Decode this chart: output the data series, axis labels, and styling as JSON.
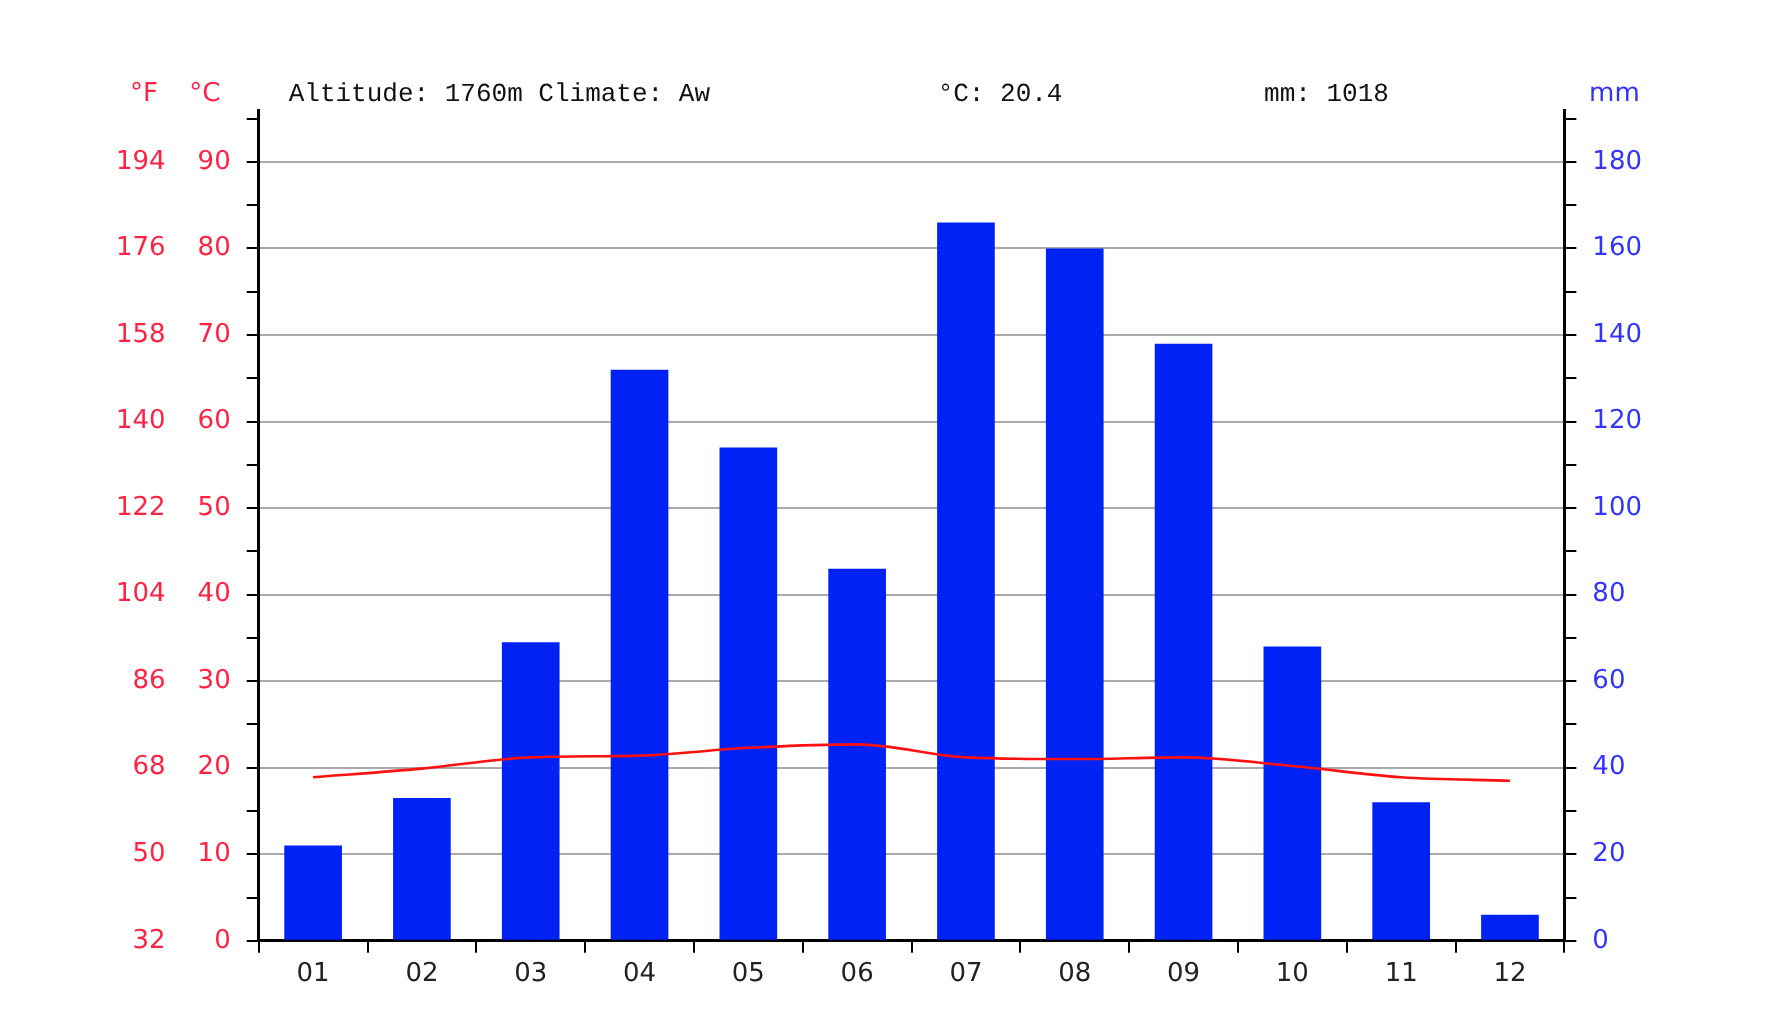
{
  "chart_data": {
    "type": "bar",
    "title": "Altitude: 1760m Climate: Aw",
    "annotations": [
      "°C: 20.4",
      "mm: 1018"
    ],
    "categories": [
      "01",
      "02",
      "03",
      "04",
      "05",
      "06",
      "07",
      "08",
      "09",
      "10",
      "11",
      "12"
    ],
    "series": [
      {
        "axis": "y2",
        "color": "#0022f5",
        "values": [
          22,
          33,
          69,
          132,
          114,
          86,
          166,
          160,
          138,
          68,
          32,
          6
        ]
      },
      {
        "type": "line",
        "axis": "y",
        "color": "#ff1010",
        "values": [
          18.9,
          19.9,
          21.2,
          21.4,
          22.3,
          22.7,
          21.2,
          21.0,
          21.2,
          20.2,
          18.9,
          18.5
        ]
      }
    ],
    "ylabel": "°C",
    "y2label": "mm",
    "y3label": "°F",
    "ylim": [
      0,
      96
    ],
    "yticks": [
      0,
      {
        "value": 5,
        "label": null
      },
      10,
      {
        "value": 15,
        "label": null
      },
      20,
      {
        "value": 25,
        "label": null
      },
      30,
      {
        "value": 35,
        "label": null
      },
      40,
      {
        "value": 45,
        "label": null
      },
      50,
      {
        "value": 55,
        "label": null
      },
      60,
      {
        "value": 65,
        "label": null
      },
      70,
      {
        "value": 75,
        "label": null
      },
      80,
      {
        "value": 85,
        "label": null
      },
      90,
      {
        "value": 95,
        "label": null
      }
    ],
    "y2lim": [
      0,
      192
    ],
    "y2ticks": [
      0,
      {
        "value": 10,
        "label": null
      },
      20,
      {
        "value": 30,
        "label": null
      },
      40,
      {
        "value": 50,
        "label": null
      },
      60,
      {
        "value": 70,
        "label": null
      },
      80,
      {
        "value": 90,
        "label": null
      },
      100,
      {
        "value": 110,
        "label": null
      },
      120,
      {
        "value": 130,
        "label": null
      },
      140,
      {
        "value": 150,
        "label": null
      },
      160,
      {
        "value": 170,
        "label": null
      },
      180,
      {
        "value": 190,
        "label": null
      }
    ],
    "y3lim": [
      32,
      204.8
    ],
    "y3ticks": [
      32,
      50,
      68,
      86,
      104,
      122,
      140,
      158,
      176,
      194
    ],
    "grid": "y",
    "legend": false,
    "marker": "none",
    "line_style": "solid"
  }
}
